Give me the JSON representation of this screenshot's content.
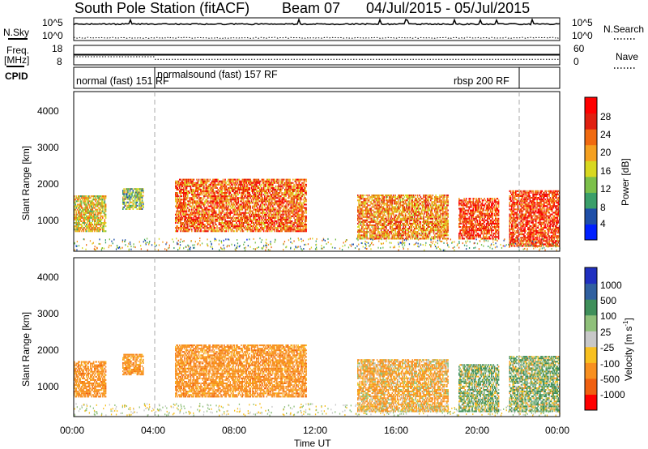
{
  "header": {
    "title": "South Pole Station (fitACF)",
    "beam": "Beam 07",
    "date_range": "04/Jul/2015 - 05/Jul/2015"
  },
  "nsky_panel": {
    "label": "N.Sky",
    "left_ticks": [
      "10^5",
      "10^0"
    ],
    "right_ticks": [
      "10^5",
      "10^0"
    ],
    "right_label": "N.Search"
  },
  "freq_panel": {
    "label_line1": "Freq.",
    "label_line2": "[MHz]",
    "left_ticks": [
      "18",
      "8"
    ],
    "right_ticks": [
      "60",
      "0"
    ],
    "right_label": "Nave"
  },
  "cpid_panel": {
    "label": "CPID",
    "modes": [
      "normal (fast) 151 RF",
      "normalsound (fast) 157 RF",
      "rbsp 200 RF"
    ]
  },
  "power_panel": {
    "ylabel": "Slant Range [km]",
    "yticks": [
      "1000",
      "2000",
      "3000",
      "4000"
    ],
    "colorbar_label": "Power [dB]",
    "colorbar_ticks": [
      "4",
      "8",
      "12",
      "16",
      "20",
      "24",
      "28"
    ],
    "colorbar_colors": [
      "#0020ff",
      "#1f4fa8",
      "#3b9f6a",
      "#7cc04a",
      "#d8d820",
      "#f4a020",
      "#f06a10",
      "#e02010",
      "#ff0000"
    ]
  },
  "velocity_panel": {
    "ylabel": "Slant Range [km]",
    "yticks": [
      "1000",
      "2000",
      "3000",
      "4000"
    ],
    "colorbar_label": "Velocity [m s^-1]",
    "colorbar_ticks": [
      "1000",
      "500",
      "100",
      "25",
      "-25",
      "-100",
      "-500",
      "-1000"
    ],
    "colorbar_colors": [
      "#2030c0",
      "#3060a0",
      "#3f8f5a",
      "#8fc07a",
      "#c8c8c8",
      "#f8c020",
      "#f89020",
      "#f06010",
      "#ff0000"
    ]
  },
  "xaxis": {
    "ticks": [
      "00:00",
      "04:00",
      "08:00",
      "12:00",
      "16:00",
      "20:00",
      "00:00"
    ],
    "label": "Time UT"
  },
  "chart_data": [
    {
      "type": "line",
      "name": "N.Sky / N.Search",
      "x_range_hours": [
        0,
        24
      ],
      "yscale": "log",
      "ylim": [
        1,
        100000
      ]
    },
    {
      "type": "line",
      "name": "Freq / Nave",
      "x_range_hours": [
        0,
        24
      ],
      "ylim": [
        8,
        18
      ]
    },
    {
      "type": "heatmap",
      "name": "Power",
      "x_range_hours": [
        0,
        24
      ],
      "ylim_km": [
        180,
        4500
      ],
      "clim_db": [
        0,
        30
      ],
      "cpid_boundaries_hours": [
        4.0,
        22.0
      ],
      "echo_regions": [
        {
          "t0": 0.0,
          "t1": 1.6,
          "r0": 700,
          "r1": 1650,
          "mean_db": 16
        },
        {
          "t0": 2.4,
          "t1": 3.4,
          "r0": 1300,
          "r1": 1850,
          "mean_db": 12
        },
        {
          "t0": 5.0,
          "t1": 11.5,
          "r0": 700,
          "r1": 2100,
          "mean_db": 22
        },
        {
          "t0": 14.0,
          "t1": 18.5,
          "r0": 500,
          "r1": 1700,
          "mean_db": 20
        },
        {
          "t0": 19.0,
          "t1": 21.0,
          "r0": 500,
          "r1": 1600,
          "mean_db": 24
        },
        {
          "t0": 21.5,
          "t1": 24.0,
          "r0": 300,
          "r1": 1800,
          "mean_db": 24
        }
      ]
    },
    {
      "type": "heatmap",
      "name": "Velocity",
      "x_range_hours": [
        0,
        24
      ],
      "ylim_km": [
        180,
        4500
      ],
      "clim_ms": [
        -1000,
        1000
      ],
      "cpid_boundaries_hours": [
        4.0,
        22.0
      ],
      "echo_regions": [
        {
          "t0": 0.0,
          "t1": 1.6,
          "r0": 700,
          "r1": 1650,
          "mean_ms": -300
        },
        {
          "t0": 2.4,
          "t1": 3.4,
          "r0": 1300,
          "r1": 1850,
          "mean_ms": -300
        },
        {
          "t0": 5.0,
          "t1": 11.5,
          "r0": 700,
          "r1": 2100,
          "mean_ms": -300
        },
        {
          "t0": 14.0,
          "t1": 18.5,
          "r0": 300,
          "r1": 1700,
          "mean_ms": -150
        },
        {
          "t0": 19.0,
          "t1": 21.0,
          "r0": 300,
          "r1": 1600,
          "mean_ms": 100
        },
        {
          "t0": 21.5,
          "t1": 24.0,
          "r0": 300,
          "r1": 1800,
          "mean_ms": 100
        }
      ]
    }
  ]
}
